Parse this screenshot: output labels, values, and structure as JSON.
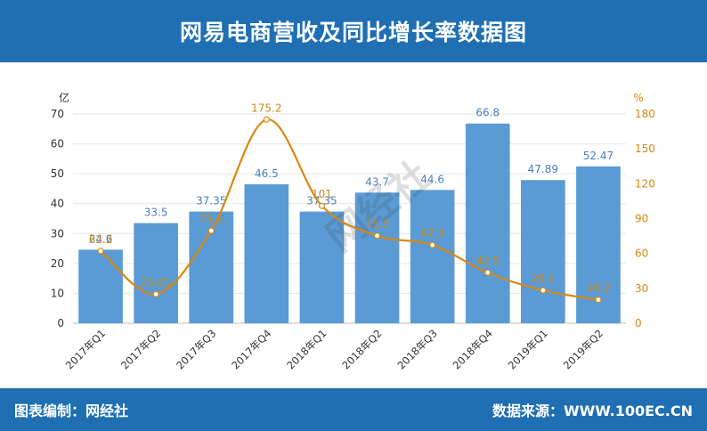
{
  "header": {
    "title": "网易电商营收及同比增长率数据图"
  },
  "footer": {
    "left": "图表编制：网经社",
    "right": "数据来源：WWW.100EC.CN"
  },
  "watermark": {
    "text": "网经社"
  },
  "colors": {
    "header_bg": "#1f6fb2",
    "bar": "#5b9bd5",
    "line": "#d8880f",
    "bar_label": "#4a7fbf",
    "line_label": "#c98a1a"
  },
  "chart_data": {
    "type": "bar",
    "categories": [
      "2017年Q1",
      "2017年Q2",
      "2017年Q3",
      "2017年Q4",
      "2018年Q1",
      "2018年Q2",
      "2018年Q3",
      "2018年Q4",
      "2019年Q1",
      "2019年Q2"
    ],
    "series": [
      {
        "type": "bar",
        "axis": "left",
        "values": [
          24.6,
          33.5,
          37.35,
          46.5,
          37.35,
          43.7,
          44.6,
          66.8,
          47.89,
          52.47
        ],
        "labels": [
          "24.6",
          "33.5",
          "37.35",
          "46.5",
          "37.35",
          "43.7",
          "44.6",
          "66.8",
          "47.89",
          "52.47"
        ]
      },
      {
        "type": "line",
        "axis": "right",
        "values": [
          62.2,
          25.01,
          79.6,
          175.2,
          101,
          75.3,
          67.3,
          43.5,
          28.3,
          20.2
        ],
        "labels": [
          "62.2",
          "25.01",
          "79.6",
          "175.2",
          "101",
          "75.3",
          "67.3",
          "43.5",
          "28.3",
          "20.2"
        ]
      }
    ],
    "y_left": {
      "label": "亿",
      "min": 0,
      "max": 70,
      "ticks": [
        0,
        10,
        20,
        30,
        40,
        50,
        60,
        70
      ]
    },
    "y_right": {
      "label": "%",
      "min": 0,
      "max": 180,
      "ticks": [
        0,
        30,
        60,
        90,
        120,
        150,
        180
      ]
    },
    "grid": true
  }
}
